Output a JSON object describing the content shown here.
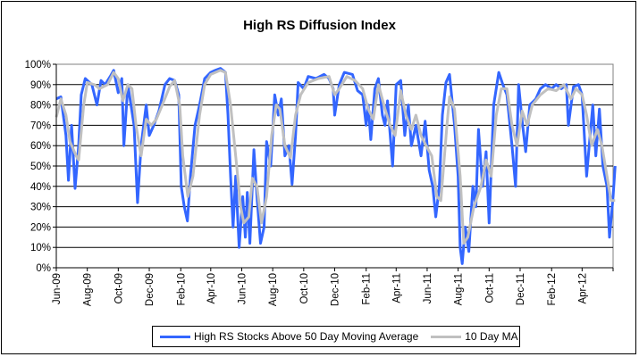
{
  "chart_data": {
    "type": "line",
    "title": "High RS Diffusion Index",
    "xlabel": "",
    "ylabel": "",
    "ylim": [
      0,
      100
    ],
    "y_ticks": [
      "0%",
      "10%",
      "20%",
      "30%",
      "40%",
      "50%",
      "60%",
      "70%",
      "80%",
      "90%",
      "100%"
    ],
    "x_range": [
      "2009-06-01",
      "2012-06-05"
    ],
    "x_ticks": [
      {
        "date": "2009-06-01",
        "label": "Jun-09"
      },
      {
        "date": "2009-08-01",
        "label": "Aug-09"
      },
      {
        "date": "2009-10-01",
        "label": "Oct-09"
      },
      {
        "date": "2009-12-01",
        "label": "Dec-09"
      },
      {
        "date": "2010-02-01",
        "label": "Feb-10"
      },
      {
        "date": "2010-04-01",
        "label": "Apr-10"
      },
      {
        "date": "2010-06-01",
        "label": "Jun-10"
      },
      {
        "date": "2010-08-01",
        "label": "Aug-10"
      },
      {
        "date": "2010-10-01",
        "label": "Oct-10"
      },
      {
        "date": "2010-12-01",
        "label": "Dec-10"
      },
      {
        "date": "2011-02-01",
        "label": "Feb-11"
      },
      {
        "date": "2011-04-01",
        "label": "Apr-11"
      },
      {
        "date": "2011-06-01",
        "label": "Jun-11"
      },
      {
        "date": "2011-08-01",
        "label": "Aug-11"
      },
      {
        "date": "2011-10-01",
        "label": "Oct-11"
      },
      {
        "date": "2011-12-01",
        "label": "Dec-11"
      },
      {
        "date": "2012-02-01",
        "label": "Feb-12"
      },
      {
        "date": "2012-04-01",
        "label": "Apr-12"
      }
    ],
    "grid": true,
    "legend_position": "bottom",
    "series": [
      {
        "name": "High RS Stocks Above 50 Day Moving Average",
        "color": "#3366FF",
        "points": [
          [
            "2009-06-01",
            83
          ],
          [
            "2009-06-10",
            84
          ],
          [
            "2009-06-20",
            65
          ],
          [
            "2009-06-25",
            43
          ],
          [
            "2009-07-01",
            70
          ],
          [
            "2009-07-08",
            39
          ],
          [
            "2009-07-15",
            60
          ],
          [
            "2009-07-20",
            85
          ],
          [
            "2009-07-28",
            93
          ],
          [
            "2009-08-10",
            90
          ],
          [
            "2009-08-20",
            80
          ],
          [
            "2009-08-28",
            92
          ],
          [
            "2009-09-05",
            90
          ],
          [
            "2009-09-15",
            94
          ],
          [
            "2009-09-22",
            97
          ],
          [
            "2009-10-01",
            86
          ],
          [
            "2009-10-08",
            93
          ],
          [
            "2009-10-12",
            60
          ],
          [
            "2009-10-20",
            90
          ],
          [
            "2009-11-01",
            70
          ],
          [
            "2009-11-08",
            32
          ],
          [
            "2009-11-15",
            60
          ],
          [
            "2009-11-25",
            80
          ],
          [
            "2009-12-01",
            65
          ],
          [
            "2009-12-10",
            70
          ],
          [
            "2009-12-20",
            77
          ],
          [
            "2010-01-01",
            90
          ],
          [
            "2010-01-10",
            93
          ],
          [
            "2010-01-20",
            92
          ],
          [
            "2010-01-28",
            85
          ],
          [
            "2010-02-02",
            40
          ],
          [
            "2010-02-08",
            30
          ],
          [
            "2010-02-14",
            23
          ],
          [
            "2010-02-20",
            45
          ],
          [
            "2010-03-01",
            70
          ],
          [
            "2010-03-10",
            80
          ],
          [
            "2010-03-20",
            93
          ],
          [
            "2010-04-01",
            96
          ],
          [
            "2010-04-10",
            97
          ],
          [
            "2010-04-20",
            98
          ],
          [
            "2010-04-30",
            96
          ],
          [
            "2010-05-05",
            75
          ],
          [
            "2010-05-10",
            45
          ],
          [
            "2010-05-15",
            20
          ],
          [
            "2010-05-20",
            45
          ],
          [
            "2010-05-27",
            10
          ],
          [
            "2010-06-03",
            35
          ],
          [
            "2010-06-08",
            15
          ],
          [
            "2010-06-12",
            37
          ],
          [
            "2010-06-17",
            12
          ],
          [
            "2010-06-25",
            58
          ],
          [
            "2010-07-01",
            35
          ],
          [
            "2010-07-08",
            12
          ],
          [
            "2010-07-15",
            20
          ],
          [
            "2010-07-20",
            62
          ],
          [
            "2010-07-28",
            50
          ],
          [
            "2010-08-05",
            85
          ],
          [
            "2010-08-12",
            75
          ],
          [
            "2010-08-18",
            83
          ],
          [
            "2010-08-25",
            55
          ],
          [
            "2010-09-02",
            60
          ],
          [
            "2010-09-08",
            41
          ],
          [
            "2010-09-15",
            65
          ],
          [
            "2010-09-20",
            91
          ],
          [
            "2010-10-01",
            88
          ],
          [
            "2010-10-10",
            94
          ],
          [
            "2010-10-25",
            93
          ],
          [
            "2010-11-10",
            95
          ],
          [
            "2010-11-20",
            93
          ],
          [
            "2010-11-28",
            88
          ],
          [
            "2010-12-01",
            75
          ],
          [
            "2010-12-10",
            90
          ],
          [
            "2010-12-20",
            96
          ],
          [
            "2011-01-05",
            95
          ],
          [
            "2011-01-15",
            87
          ],
          [
            "2011-01-25",
            85
          ],
          [
            "2011-02-01",
            70
          ],
          [
            "2011-02-05",
            80
          ],
          [
            "2011-02-10",
            63
          ],
          [
            "2011-02-18",
            88
          ],
          [
            "2011-02-25",
            93
          ],
          [
            "2011-03-05",
            75
          ],
          [
            "2011-03-10",
            70
          ],
          [
            "2011-03-15",
            82
          ],
          [
            "2011-03-25",
            50
          ],
          [
            "2011-04-01",
            90
          ],
          [
            "2011-04-10",
            92
          ],
          [
            "2011-04-18",
            65
          ],
          [
            "2011-04-25",
            80
          ],
          [
            "2011-05-01",
            60
          ],
          [
            "2011-05-10",
            70
          ],
          [
            "2011-05-20",
            55
          ],
          [
            "2011-05-28",
            72
          ],
          [
            "2011-06-05",
            48
          ],
          [
            "2011-06-12",
            40
          ],
          [
            "2011-06-18",
            25
          ],
          [
            "2011-06-25",
            40
          ],
          [
            "2011-07-01",
            75
          ],
          [
            "2011-07-08",
            91
          ],
          [
            "2011-07-15",
            95
          ],
          [
            "2011-07-25",
            70
          ],
          [
            "2011-08-01",
            45
          ],
          [
            "2011-08-05",
            10
          ],
          [
            "2011-08-09",
            2
          ],
          [
            "2011-08-15",
            20
          ],
          [
            "2011-08-22",
            8
          ],
          [
            "2011-08-30",
            40
          ],
          [
            "2011-09-05",
            30
          ],
          [
            "2011-09-10",
            68
          ],
          [
            "2011-09-18",
            40
          ],
          [
            "2011-09-25",
            57
          ],
          [
            "2011-10-01",
            22
          ],
          [
            "2011-10-10",
            80
          ],
          [
            "2011-10-20",
            96
          ],
          [
            "2011-10-28",
            90
          ],
          [
            "2011-11-05",
            85
          ],
          [
            "2011-11-15",
            60
          ],
          [
            "2011-11-22",
            40
          ],
          [
            "2011-11-28",
            90
          ],
          [
            "2011-12-05",
            72
          ],
          [
            "2011-12-12",
            57
          ],
          [
            "2011-12-20",
            80
          ],
          [
            "2012-01-01",
            83
          ],
          [
            "2012-01-10",
            88
          ],
          [
            "2012-01-20",
            90
          ],
          [
            "2012-02-01",
            88
          ],
          [
            "2012-02-10",
            90
          ],
          [
            "2012-02-20",
            88
          ],
          [
            "2012-03-01",
            90
          ],
          [
            "2012-03-05",
            70
          ],
          [
            "2012-03-15",
            89
          ],
          [
            "2012-03-25",
            90
          ],
          [
            "2012-04-01",
            85
          ],
          [
            "2012-04-10",
            45
          ],
          [
            "2012-04-15",
            60
          ],
          [
            "2012-04-22",
            80
          ],
          [
            "2012-04-28",
            55
          ],
          [
            "2012-05-05",
            78
          ],
          [
            "2012-05-12",
            50
          ],
          [
            "2012-05-20",
            40
          ],
          [
            "2012-05-25",
            15
          ],
          [
            "2012-06-01",
            35
          ],
          [
            "2012-06-05",
            50
          ]
        ]
      },
      {
        "name": "10 Day MA",
        "color": "#C0C0C0",
        "points": [
          [
            "2009-06-01",
            74
          ],
          [
            "2009-06-10",
            83
          ],
          [
            "2009-06-20",
            75
          ],
          [
            "2009-06-28",
            62
          ],
          [
            "2009-07-10",
            55
          ],
          [
            "2009-07-15",
            53
          ],
          [
            "2009-07-25",
            80
          ],
          [
            "2009-08-01",
            91
          ],
          [
            "2009-08-15",
            90
          ],
          [
            "2009-08-25",
            88
          ],
          [
            "2009-09-10",
            90
          ],
          [
            "2009-09-22",
            96
          ],
          [
            "2009-10-01",
            93
          ],
          [
            "2009-10-10",
            82
          ],
          [
            "2009-10-20",
            90
          ],
          [
            "2009-10-28",
            88
          ],
          [
            "2009-11-05",
            70
          ],
          [
            "2009-11-15",
            55
          ],
          [
            "2009-11-25",
            73
          ],
          [
            "2009-12-05",
            70
          ],
          [
            "2009-12-15",
            73
          ],
          [
            "2009-12-30",
            82
          ],
          [
            "2010-01-10",
            89
          ],
          [
            "2010-01-20",
            92
          ],
          [
            "2010-01-30",
            80
          ],
          [
            "2010-02-05",
            55
          ],
          [
            "2010-02-15",
            35
          ],
          [
            "2010-02-25",
            45
          ],
          [
            "2010-03-10",
            75
          ],
          [
            "2010-03-20",
            90
          ],
          [
            "2010-04-01",
            95
          ],
          [
            "2010-04-20",
            97
          ],
          [
            "2010-04-30",
            96
          ],
          [
            "2010-05-10",
            80
          ],
          [
            "2010-05-20",
            55
          ],
          [
            "2010-05-30",
            30
          ],
          [
            "2010-06-05",
            22
          ],
          [
            "2010-06-15",
            25
          ],
          [
            "2010-06-22",
            44
          ],
          [
            "2010-07-01",
            40
          ],
          [
            "2010-07-10",
            22
          ],
          [
            "2010-07-20",
            35
          ],
          [
            "2010-07-30",
            65
          ],
          [
            "2010-08-08",
            80
          ],
          [
            "2010-08-15",
            78
          ],
          [
            "2010-08-25",
            60
          ],
          [
            "2010-09-05",
            54
          ],
          [
            "2010-09-15",
            75
          ],
          [
            "2010-09-25",
            85
          ],
          [
            "2010-10-10",
            91
          ],
          [
            "2010-10-30",
            93
          ],
          [
            "2010-11-20",
            94
          ],
          [
            "2010-12-01",
            85
          ],
          [
            "2010-12-10",
            88
          ],
          [
            "2010-12-25",
            94
          ],
          [
            "2011-01-10",
            92
          ],
          [
            "2011-01-25",
            88
          ],
          [
            "2011-02-05",
            78
          ],
          [
            "2011-02-15",
            73
          ],
          [
            "2011-02-25",
            90
          ],
          [
            "2011-03-10",
            78
          ],
          [
            "2011-03-20",
            70
          ],
          [
            "2011-03-30",
            65
          ],
          [
            "2011-04-10",
            87
          ],
          [
            "2011-04-20",
            75
          ],
          [
            "2011-05-01",
            68
          ],
          [
            "2011-05-10",
            75
          ],
          [
            "2011-05-20",
            65
          ],
          [
            "2011-05-30",
            60
          ],
          [
            "2011-06-10",
            55
          ],
          [
            "2011-06-20",
            35
          ],
          [
            "2011-06-28",
            33
          ],
          [
            "2011-07-10",
            70
          ],
          [
            "2011-07-15",
            84
          ],
          [
            "2011-07-25",
            78
          ],
          [
            "2011-08-05",
            45
          ],
          [
            "2011-08-12",
            12
          ],
          [
            "2011-08-20",
            15
          ],
          [
            "2011-09-01",
            30
          ],
          [
            "2011-09-15",
            40
          ],
          [
            "2011-09-25",
            53
          ],
          [
            "2011-10-05",
            45
          ],
          [
            "2011-10-15",
            75
          ],
          [
            "2011-10-25",
            88
          ],
          [
            "2011-11-05",
            88
          ],
          [
            "2011-11-15",
            70
          ],
          [
            "2011-11-25",
            60
          ],
          [
            "2011-12-05",
            77
          ],
          [
            "2011-12-15",
            70
          ],
          [
            "2011-12-25",
            80
          ],
          [
            "2012-01-10",
            85
          ],
          [
            "2012-01-25",
            88
          ],
          [
            "2012-02-10",
            87
          ],
          [
            "2012-02-25",
            90
          ],
          [
            "2012-03-10",
            83
          ],
          [
            "2012-03-20",
            88
          ],
          [
            "2012-04-01",
            85
          ],
          [
            "2012-04-10",
            75
          ],
          [
            "2012-04-20",
            60
          ],
          [
            "2012-05-01",
            68
          ],
          [
            "2012-05-10",
            60
          ],
          [
            "2012-05-20",
            45
          ],
          [
            "2012-05-28",
            33
          ],
          [
            "2012-06-05",
            33
          ]
        ]
      }
    ]
  }
}
